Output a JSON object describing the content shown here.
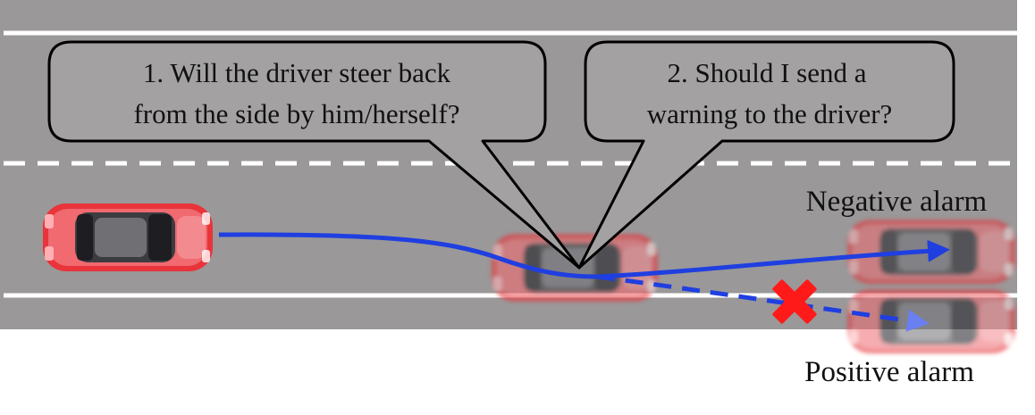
{
  "bubbles": [
    {
      "line1": "1. Will the driver steer back",
      "line2": "from the side by him/herself?"
    },
    {
      "line1": "2. Should I send  a",
      "line2": "warning to the driver?"
    }
  ],
  "outcomes": {
    "negative": "Negative alarm",
    "positive": "Positive alarm"
  },
  "colors": {
    "road": "#9a9899",
    "lane_marking": "#ffffff",
    "trajectory": "#1f3fe0",
    "car_body": "#e8343a",
    "reject_mark": "#ff1a1a"
  },
  "icons": {
    "car": "car-topdown-icon",
    "reject": "red-x-icon"
  }
}
